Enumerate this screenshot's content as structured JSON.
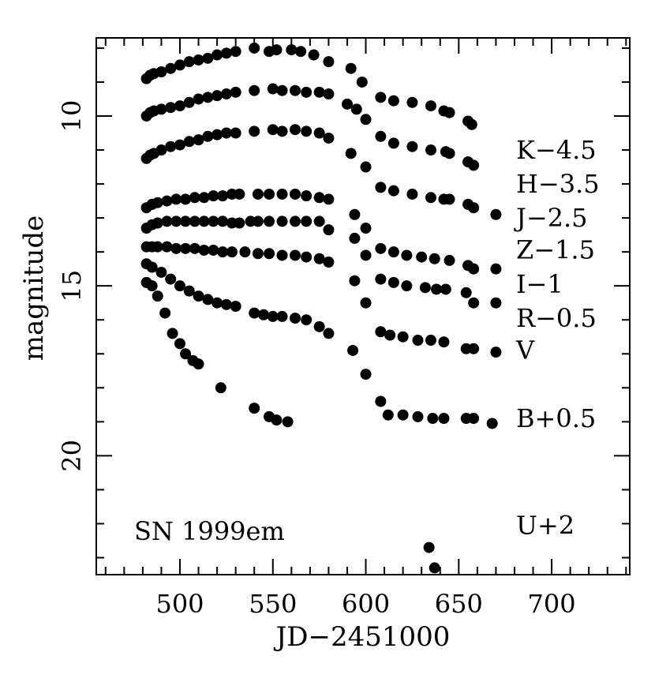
{
  "chart_data": {
    "type": "scatter",
    "title": "",
    "xlabel": "JD−2451000",
    "ylabel": "magnitude",
    "xlim": [
      455,
      742
    ],
    "ylim": [
      23.5,
      7.7
    ],
    "y_inverted": true,
    "grid": false,
    "marker_color": "#000000",
    "xticks": [
      {
        "value": 500,
        "label": "500"
      },
      {
        "value": 550,
        "label": "550"
      },
      {
        "value": 600,
        "label": "600"
      },
      {
        "value": 650,
        "label": "650"
      },
      {
        "value": 700,
        "label": "700"
      }
    ],
    "yticks": [
      {
        "value": 10,
        "label": "10"
      },
      {
        "value": 15,
        "label": "15"
      },
      {
        "value": 20,
        "label": "20"
      }
    ],
    "annotations": [
      {
        "text": "SN 1999em",
        "x": 465,
        "y": 22.3
      }
    ],
    "series": [
      {
        "name": "K−4.5",
        "x": [
          482,
          484,
          486,
          490,
          495,
          500,
          505,
          510,
          515,
          520,
          525,
          530,
          540,
          548,
          552,
          560,
          565,
          572,
          580,
          592,
          598,
          608,
          615,
          625,
          635,
          642,
          645,
          655,
          657
        ],
        "y": [
          8.9,
          8.8,
          8.75,
          8.7,
          8.6,
          8.5,
          8.4,
          8.35,
          8.3,
          8.2,
          8.15,
          8.1,
          8.0,
          8.1,
          8.05,
          8.05,
          8.1,
          8.2,
          8.4,
          8.6,
          9.0,
          9.45,
          9.55,
          9.6,
          9.7,
          9.85,
          9.9,
          10.15,
          10.25
        ]
      },
      {
        "name": "H−3.5",
        "x": [
          482,
          484,
          486,
          490,
          495,
          500,
          505,
          510,
          515,
          520,
          525,
          530,
          540,
          550,
          555,
          562,
          568,
          575,
          580,
          590,
          595,
          600,
          608,
          615,
          625,
          635,
          643,
          645,
          655,
          658
        ],
        "y": [
          10.0,
          9.9,
          9.85,
          9.8,
          9.75,
          9.7,
          9.6,
          9.5,
          9.45,
          9.4,
          9.35,
          9.3,
          9.25,
          9.2,
          9.25,
          9.25,
          9.3,
          9.3,
          9.35,
          9.65,
          9.8,
          10.1,
          10.6,
          10.8,
          10.9,
          11.0,
          11.05,
          11.1,
          11.35,
          11.45
        ]
      },
      {
        "name": "J−2.5",
        "x": [
          482,
          484,
          486,
          490,
          495,
          500,
          505,
          510,
          515,
          520,
          525,
          530,
          540,
          550,
          555,
          562,
          568,
          575,
          580,
          592,
          600,
          608,
          615,
          625,
          635,
          642,
          645,
          655,
          658
        ],
        "y": [
          11.25,
          11.15,
          11.1,
          11.0,
          10.9,
          10.85,
          10.75,
          10.7,
          10.6,
          10.55,
          10.5,
          10.5,
          10.45,
          10.4,
          10.45,
          10.4,
          10.45,
          10.5,
          10.65,
          11.1,
          11.5,
          12.1,
          12.2,
          12.3,
          12.4,
          12.45,
          12.45,
          12.6,
          12.7
        ]
      },
      {
        "name": "Z−1.5",
        "x": [
          482,
          485,
          488,
          493,
          498,
          503,
          508,
          513,
          518,
          523,
          528,
          532,
          542,
          548,
          555,
          562,
          568,
          575,
          580,
          594,
          600,
          608,
          615,
          622,
          630,
          637,
          645,
          655,
          658,
          670
        ],
        "y": [
          12.7,
          12.6,
          12.55,
          12.5,
          12.45,
          12.45,
          12.4,
          12.4,
          12.35,
          12.35,
          12.3,
          12.3,
          12.3,
          12.3,
          12.3,
          12.3,
          12.35,
          12.4,
          12.45,
          12.9,
          13.3,
          13.9,
          14.0,
          14.1,
          14.15,
          14.2,
          14.25,
          14.4,
          14.5,
          12.9
        ]
      },
      {
        "name": "I−1",
        "x": [
          482,
          485,
          488,
          493,
          498,
          503,
          508,
          513,
          518,
          523,
          528,
          532,
          538,
          542,
          548,
          555,
          562,
          568,
          575,
          580,
          594,
          600,
          608,
          615,
          622,
          632,
          638,
          643,
          654,
          658,
          670
        ],
        "y": [
          13.3,
          13.2,
          13.15,
          13.1,
          13.1,
          13.1,
          13.1,
          13.1,
          13.1,
          13.1,
          13.15,
          13.15,
          13.1,
          13.1,
          13.1,
          13.1,
          13.1,
          13.1,
          13.1,
          13.35,
          13.6,
          14.1,
          14.8,
          14.9,
          15.0,
          15.05,
          15.1,
          15.1,
          15.2,
          15.5,
          14.5
        ]
      },
      {
        "name": "R−0.5",
        "x": [
          482,
          485,
          488,
          493,
          498,
          503,
          508,
          513,
          518,
          523,
          528,
          535,
          542,
          548,
          555,
          562,
          568,
          575,
          580,
          594,
          600,
          608,
          613,
          620,
          628,
          635,
          642,
          654,
          658,
          670
        ],
        "y": [
          13.85,
          13.85,
          13.85,
          13.85,
          13.9,
          13.9,
          13.9,
          13.95,
          13.95,
          14.0,
          14.0,
          14.0,
          14.05,
          14.05,
          14.1,
          14.1,
          14.15,
          14.2,
          14.3,
          14.85,
          15.5,
          16.35,
          16.45,
          16.5,
          16.6,
          16.6,
          16.65,
          16.85,
          16.85,
          15.5
        ]
      },
      {
        "name": "V",
        "x": [
          482,
          485,
          490,
          495,
          500,
          505,
          510,
          515,
          520,
          525,
          530,
          540,
          545,
          550,
          555,
          562,
          568,
          575,
          580,
          593,
          600,
          608,
          612,
          620,
          628,
          636,
          642,
          654,
          658,
          668,
          670
        ],
        "y": [
          14.35,
          14.45,
          14.6,
          14.8,
          15.0,
          15.15,
          15.3,
          15.4,
          15.5,
          15.55,
          15.6,
          15.8,
          15.85,
          15.9,
          15.9,
          15.95,
          16.0,
          16.2,
          16.4,
          16.9,
          17.6,
          18.4,
          18.8,
          18.8,
          18.85,
          18.9,
          18.9,
          18.9,
          18.9,
          19.05,
          16.95
        ]
      },
      {
        "name": "B+0.5",
        "x": [
          482,
          485,
          488,
          492,
          496,
          500,
          503,
          507,
          510,
          522,
          540,
          548,
          552,
          558
        ],
        "y": [
          14.9,
          15.0,
          15.3,
          15.8,
          16.4,
          16.7,
          17.0,
          17.2,
          17.3,
          18.0,
          18.6,
          18.85,
          18.95,
          19.0
        ]
      },
      {
        "name": "U+2",
        "x": [
          634,
          637
        ],
        "y": [
          22.7,
          23.3
        ]
      }
    ]
  }
}
